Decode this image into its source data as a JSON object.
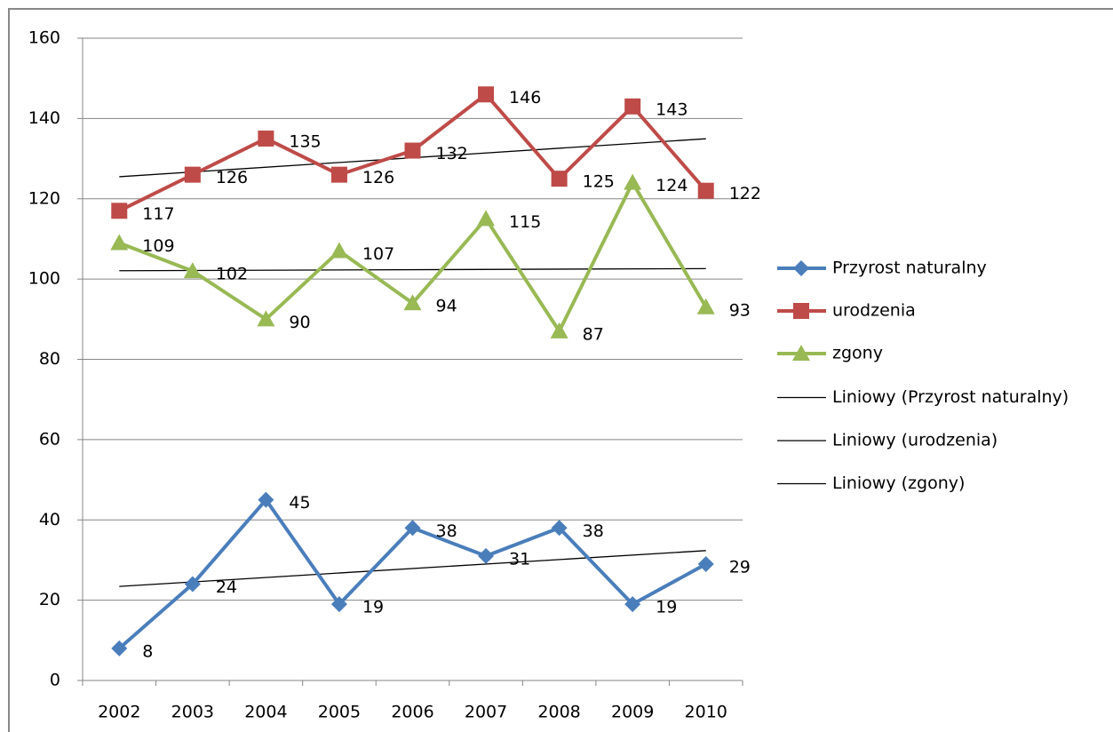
{
  "chart_data": {
    "type": "line",
    "categories": [
      "2002",
      "2003",
      "2004",
      "2005",
      "2006",
      "2007",
      "2008",
      "2009",
      "2010"
    ],
    "series": [
      {
        "name": "Przyrost naturalny",
        "color": "#4a7ebb",
        "marker": "diamond",
        "values": [
          8,
          24,
          45,
          19,
          38,
          31,
          38,
          19,
          29
        ],
        "trendline": {
          "name": "Liniowy (Przyrost naturalny)",
          "color": "#000000"
        }
      },
      {
        "name": "urodzenia",
        "color": "#be4b48",
        "marker": "square",
        "values": [
          117,
          126,
          135,
          126,
          132,
          146,
          125,
          143,
          122
        ],
        "trendline": {
          "name": "Liniowy (urodzenia)",
          "color": "#000000"
        }
      },
      {
        "name": "zgony",
        "color": "#98b954",
        "marker": "triangle",
        "values": [
          109,
          102,
          90,
          107,
          94,
          115,
          87,
          124,
          93
        ],
        "trendline": {
          "name": "Liniowy (zgony)",
          "color": "#000000"
        }
      }
    ],
    "ylim": [
      0,
      160
    ],
    "yticks": [
      0,
      20,
      40,
      60,
      80,
      100,
      120,
      140,
      160
    ],
    "grid": true,
    "legend": "right",
    "data_labels": true
  }
}
